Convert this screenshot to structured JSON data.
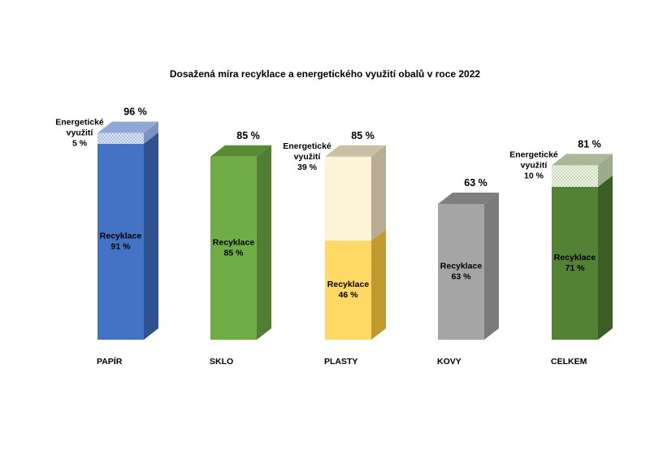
{
  "chart_data": {
    "type": "bar",
    "title": "Dosažená míra recyklace a energetického využití obalů v roce 2022",
    "categories": [
      "PAPÍR",
      "SKLO",
      "PLASTY",
      "KOVY",
      "CELKEM"
    ],
    "series": [
      {
        "name": "Recyklace",
        "values": [
          91,
          85,
          46,
          63,
          71
        ],
        "labels": [
          "Recyklace\n91 %",
          "Recyklace\n85 %",
          "Recyklace\n46 %",
          "Recyklace\n63 %",
          "Recyklace\n71 %"
        ],
        "colors": [
          "#4472c4",
          "#70ad47",
          "#ffd966",
          "#a5a5a5",
          "#548235"
        ]
      },
      {
        "name": "Energetické využití",
        "values": [
          5,
          0,
          39,
          0,
          10
        ],
        "labels": [
          "Energetické\nvyužití\n5 %",
          "",
          "Energetické\nvyužití\n39 %",
          "",
          "Energetické\nvyužití\n10 %"
        ],
        "colors": [
          "#c9d4ec",
          "#ffffff",
          "#fdf4d8",
          "#ffffff",
          "#dce8d2"
        ]
      }
    ],
    "totals": [
      "96 %",
      "85 %",
      "85 %",
      "63 %",
      "81 %"
    ],
    "ylim": [
      0,
      100
    ],
    "grid": false,
    "legend": "none"
  }
}
